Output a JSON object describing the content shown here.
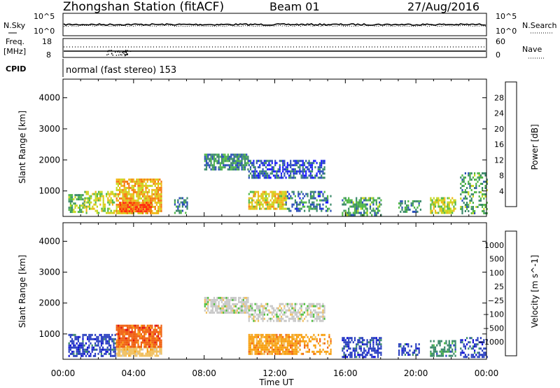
{
  "header": {
    "title": "Zhongshan Station (fitACF)",
    "beam": "Beam 01",
    "date": "27/Aug/2016"
  },
  "noise_panel": {
    "left_label": "N.Sky",
    "right_label": "N.Search",
    "left_ticks": [
      "10^5",
      "10^0"
    ],
    "right_ticks": [
      "10^5",
      "10^0"
    ]
  },
  "freq_panel": {
    "left_label_1": "Freq.",
    "left_label_2": "[MHz]",
    "right_label": "Nave",
    "left_ticks": [
      "18",
      "8"
    ],
    "right_ticks": [
      "60",
      "0"
    ]
  },
  "cpid": {
    "label": "CPID",
    "text": "normal (fast stereo) 153"
  },
  "colors": {
    "power": [
      "#1a1aff",
      "#2b4fb8",
      "#3b8a6a",
      "#52b848",
      "#c8d820",
      "#f0b818",
      "#f57a10",
      "#ff2a10"
    ],
    "velocity": [
      "#e01010",
      "#f06010",
      "#f8a010",
      "#f0c060",
      "#c8c8c8",
      "#50c040",
      "#3a8a6a",
      "#2a40c0",
      "#1010d8"
    ]
  },
  "chart_data": [
    {
      "type": "heatmap",
      "quantity": "Power",
      "ylabel": "Slant Range [km]",
      "xlabel": "",
      "x_ticks": [
        "00:00",
        "04:00",
        "08:00",
        "12:00",
        "16:00",
        "20:00",
        "00:00"
      ],
      "xlim_hours": [
        0,
        24
      ],
      "ylim_km": [
        180,
        4600
      ],
      "y_ticks": [
        1000,
        2000,
        3000,
        4000
      ],
      "colorbar_label": "Power [dB]",
      "colorbar_ticks": [
        4,
        8,
        12,
        16,
        20,
        24,
        28
      ],
      "colorbar_range": [
        0,
        32
      ],
      "regions": [
        {
          "t_start": 0.3,
          "t_end": 1.2,
          "r_start": 300,
          "r_end": 900,
          "level": 14,
          "density": 0.65
        },
        {
          "t_start": 1.2,
          "t_end": 3.0,
          "r_start": 300,
          "r_end": 1000,
          "level": 18,
          "density": 0.55
        },
        {
          "t_start": 3.0,
          "t_end": 5.6,
          "r_start": 300,
          "r_end": 1400,
          "level": 22,
          "density": 0.8
        },
        {
          "t_start": 3.2,
          "t_end": 5.0,
          "r_start": 350,
          "r_end": 650,
          "level": 28,
          "density": 0.9
        },
        {
          "t_start": 6.3,
          "t_end": 7.0,
          "r_start": 300,
          "r_end": 800,
          "level": 10,
          "density": 0.45
        },
        {
          "t_start": 8.0,
          "t_end": 10.5,
          "r_start": 1700,
          "r_end": 2200,
          "level": 10,
          "density": 0.75
        },
        {
          "t_start": 10.5,
          "t_end": 14.8,
          "r_start": 1400,
          "r_end": 2000,
          "level": 6,
          "density": 0.6
        },
        {
          "t_start": 10.5,
          "t_end": 12.6,
          "r_start": 400,
          "r_end": 1000,
          "level": 20,
          "density": 0.8
        },
        {
          "t_start": 12.6,
          "t_end": 15.2,
          "r_start": 350,
          "r_end": 1000,
          "level": 8,
          "density": 0.4
        },
        {
          "t_start": 15.8,
          "t_end": 18.0,
          "r_start": 250,
          "r_end": 800,
          "level": 12,
          "density": 0.6
        },
        {
          "t_start": 19.0,
          "t_end": 20.3,
          "r_start": 300,
          "r_end": 700,
          "level": 10,
          "density": 0.5
        },
        {
          "t_start": 20.8,
          "t_end": 22.2,
          "r_start": 300,
          "r_end": 800,
          "level": 18,
          "density": 0.65
        },
        {
          "t_start": 22.5,
          "t_end": 24.0,
          "r_start": 250,
          "r_end": 1600,
          "level": 12,
          "density": 0.45
        }
      ]
    },
    {
      "type": "heatmap",
      "quantity": "Velocity",
      "ylabel": "Slant Range [km]",
      "xlabel": "Time UT",
      "x_ticks": [
        "00:00",
        "04:00",
        "08:00",
        "12:00",
        "16:00",
        "20:00",
        "00:00"
      ],
      "xlim_hours": [
        0,
        24
      ],
      "ylim_km": [
        180,
        4600
      ],
      "y_ticks": [
        1000,
        2000,
        3000,
        4000
      ],
      "colorbar_label": "Velocity [m s^-1]",
      "colorbar_ticks": [
        "1000",
        "500",
        "100",
        "25",
        "−25",
        "−100",
        "−500",
        "−1000"
      ],
      "regions": [
        {
          "t_start": 0.3,
          "t_end": 3.0,
          "r_start": 300,
          "r_end": 1000,
          "class": 1,
          "density": 0.65
        },
        {
          "t_start": 3.0,
          "t_end": 5.6,
          "r_start": 300,
          "r_end": 600,
          "class": 5,
          "density": 0.8
        },
        {
          "t_start": 3.0,
          "t_end": 5.6,
          "r_start": 600,
          "r_end": 1300,
          "class": 7,
          "density": 0.85
        },
        {
          "t_start": 8.0,
          "t_end": 10.5,
          "r_start": 1700,
          "r_end": 2200,
          "class": 4,
          "density": 0.75
        },
        {
          "t_start": 10.5,
          "t_end": 14.8,
          "r_start": 1400,
          "r_end": 2000,
          "class": 4,
          "density": 0.6
        },
        {
          "t_start": 10.5,
          "t_end": 13.3,
          "r_start": 350,
          "r_end": 1000,
          "class": 6,
          "density": 0.85
        },
        {
          "t_start": 13.3,
          "t_end": 15.2,
          "r_start": 350,
          "r_end": 1000,
          "class": 6,
          "density": 0.4
        },
        {
          "t_start": 15.8,
          "t_end": 18.0,
          "r_start": 250,
          "r_end": 900,
          "class": 1,
          "density": 0.6
        },
        {
          "t_start": 19.0,
          "t_end": 20.3,
          "r_start": 300,
          "r_end": 700,
          "class": 1,
          "density": 0.5
        },
        {
          "t_start": 20.8,
          "t_end": 22.2,
          "r_start": 300,
          "r_end": 800,
          "class": 2,
          "density": 0.6
        },
        {
          "t_start": 22.5,
          "t_end": 24.0,
          "r_start": 250,
          "r_end": 900,
          "class": 1,
          "density": 0.45
        }
      ]
    }
  ]
}
